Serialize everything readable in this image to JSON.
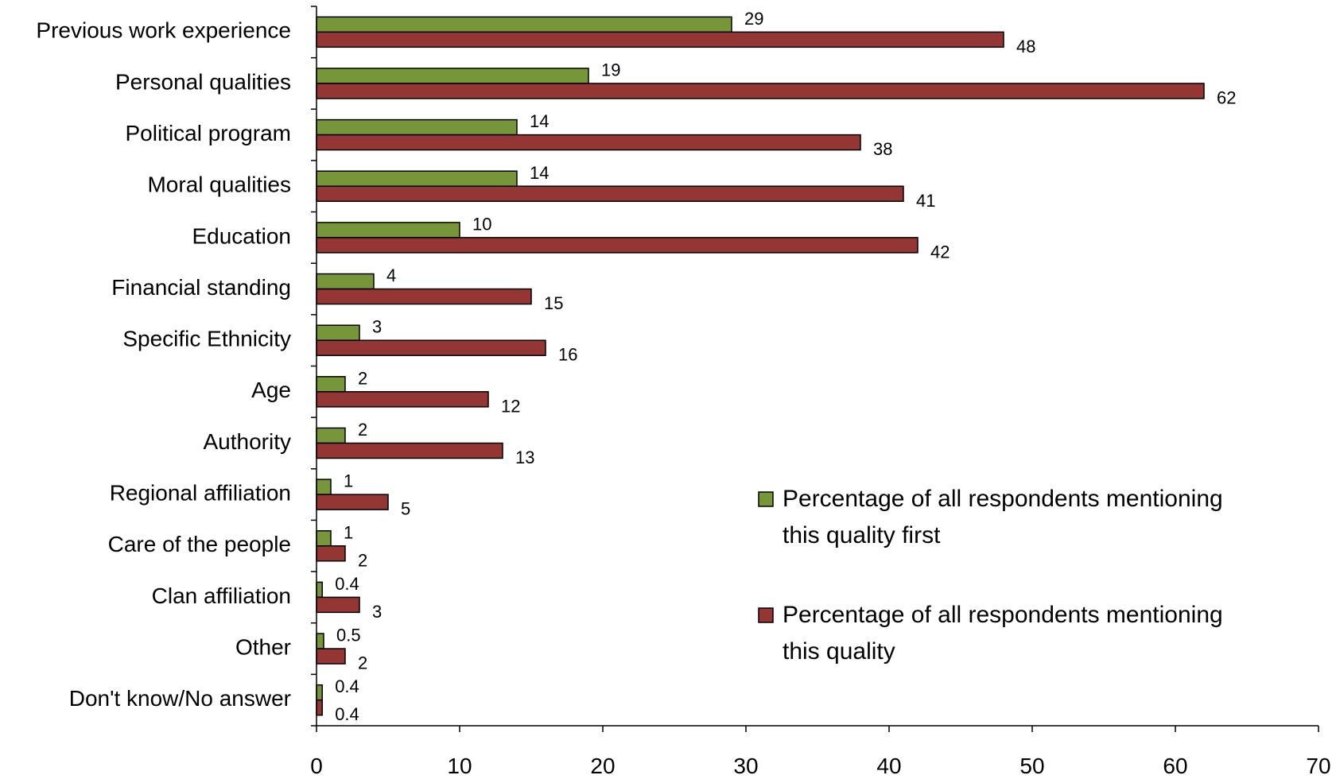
{
  "chart_data": {
    "type": "bar",
    "orientation": "horizontal",
    "categories": [
      "Previous work experience",
      "Personal qualities",
      "Political program",
      "Moral qualities",
      "Education",
      "Financial standing",
      "Specific Ethnicity",
      "Age",
      "Authority",
      "Regional affiliation",
      "Care of the people",
      "Clan affiliation",
      "Other",
      "Don't know/No  answer"
    ],
    "series": [
      {
        "name": "Percentage of all respondents mentioning this quality first",
        "legend_lines": [
          "Percentage of all respondents mentioning",
          "this quality first"
        ],
        "color": "#77963a",
        "values": [
          29,
          19,
          14,
          14,
          10,
          4,
          3,
          2,
          2,
          1,
          1,
          0.4,
          0.5,
          0.4
        ],
        "labels": [
          "29",
          "19",
          "14",
          "14",
          "10",
          "4",
          "3",
          "2",
          "2",
          "1",
          "1",
          "0.4",
          "0.5",
          "0.4"
        ]
      },
      {
        "name": "Percentage of all respondents mentioning this quality",
        "legend_lines": [
          "Percentage of all respondents mentioning",
          "this quality"
        ],
        "color": "#943634",
        "values": [
          48,
          62,
          38,
          41,
          42,
          15,
          16,
          12,
          13,
          5,
          2,
          3,
          2,
          0.4
        ],
        "labels": [
          "48",
          "62",
          "38",
          "41",
          "42",
          "15",
          "16",
          "12",
          "13",
          "5",
          "2",
          "3",
          "2",
          "0.4"
        ]
      }
    ],
    "xlim": [
      0,
      70
    ],
    "xticks": [
      "0",
      "10",
      "20",
      "30",
      "40",
      "50",
      "60",
      "70"
    ],
    "grid": false,
    "legend_position": "right"
  }
}
